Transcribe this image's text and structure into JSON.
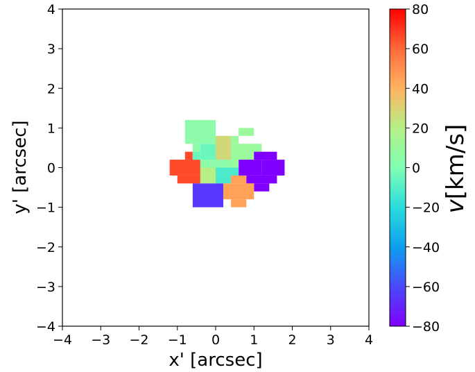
{
  "chart_data": {
    "type": "heatmap",
    "xlabel": "x' [arcsec]",
    "ylabel": "y' [arcsec]",
    "xlim": [
      -4,
      4
    ],
    "ylim": [
      -4,
      4
    ],
    "x_ticks": [
      "−4",
      "−3",
      "−2",
      "−1",
      "0",
      "1",
      "2",
      "3",
      "4"
    ],
    "y_ticks": [
      "−4",
      "−3",
      "−2",
      "−1",
      "0",
      "1",
      "2",
      "3",
      "4"
    ],
    "colorbar": {
      "label": "v[km/s]",
      "label_italic": "v",
      "label_rest": "[km/s]",
      "range": [
        -80,
        80
      ],
      "ticks": [
        "−80",
        "−60",
        "−40",
        "−20",
        "0",
        "20",
        "40",
        "60",
        "80"
      ],
      "colormap": "rainbow"
    },
    "cells": [
      {
        "x0": -0.8,
        "x1": -0.6,
        "y0": 0.2,
        "y1": 0.4,
        "v": 66
      },
      {
        "x0": -1.2,
        "x1": -0.4,
        "y0": -0.2,
        "y1": 0.2,
        "v": 66
      },
      {
        "x0": -1.0,
        "x1": -0.4,
        "y0": -0.4,
        "y1": -0.2,
        "v": 66
      },
      {
        "x0": -0.8,
        "x1": 0.0,
        "y0": 0.6,
        "y1": 1.2,
        "v": 5
      },
      {
        "x0": -0.6,
        "x1": -0.4,
        "y0": 0.4,
        "y1": 0.6,
        "v": 5
      },
      {
        "x0": 0.4,
        "x1": 0.6,
        "y0": 0.6,
        "y1": 0.8,
        "v": 10
      },
      {
        "x0": 0.4,
        "x1": 1.2,
        "y0": 0.2,
        "y1": 0.6,
        "v": 10
      },
      {
        "x0": 0.6,
        "x1": 1.0,
        "y0": 0.8,
        "y1": 1.0,
        "v": 10
      },
      {
        "x0": 0.4,
        "x1": 0.6,
        "y0": 0.0,
        "y1": 0.2,
        "v": 10
      },
      {
        "x0": -0.4,
        "x1": 0.0,
        "y0": 0.2,
        "y1": 0.6,
        "v": -5
      },
      {
        "x0": -0.6,
        "x1": -0.4,
        "y0": 0.2,
        "y1": 0.4,
        "v": -5
      },
      {
        "x0": 0.0,
        "x1": 0.4,
        "y0": 0.2,
        "y1": 0.8,
        "v": 28
      },
      {
        "x0": 0.0,
        "x1": 0.4,
        "y0": 0.0,
        "y1": 0.2,
        "v": 5
      },
      {
        "x0": -0.4,
        "x1": 0.0,
        "y0": 0.0,
        "y1": 0.2,
        "v": 5
      },
      {
        "x0": -0.4,
        "x1": 0.0,
        "y0": -0.4,
        "y1": 0.0,
        "v": 20
      },
      {
        "x0": 0.0,
        "x1": 0.6,
        "y0": -0.2,
        "y1": 0.0,
        "v": -12
      },
      {
        "x0": 0.0,
        "x1": 0.4,
        "y0": -0.4,
        "y1": -0.2,
        "v": -12
      },
      {
        "x0": 0.6,
        "x1": 1.2,
        "y0": -0.2,
        "y1": 0.2,
        "v": -80
      },
      {
        "x0": 1.2,
        "x1": 1.8,
        "y0": -0.2,
        "y1": 0.2,
        "v": -80
      },
      {
        "x0": 1.0,
        "x1": 1.6,
        "y0": 0.2,
        "y1": 0.4,
        "v": -80
      },
      {
        "x0": 0.8,
        "x1": 1.6,
        "y0": -0.4,
        "y1": -0.2,
        "v": -80
      },
      {
        "x0": 1.0,
        "x1": 1.4,
        "y0": -0.6,
        "y1": -0.4,
        "v": -80
      },
      {
        "x0": -0.6,
        "x1": 0.2,
        "y0": -1.0,
        "y1": -0.4,
        "v": -65
      },
      {
        "x0": 0.4,
        "x1": 0.8,
        "y0": -0.4,
        "y1": -0.2,
        "v": 45
      },
      {
        "x0": 0.2,
        "x1": 1.0,
        "y0": -0.8,
        "y1": -0.4,
        "v": 45
      },
      {
        "x0": 0.4,
        "x1": 0.8,
        "y0": -1.0,
        "y1": -0.8,
        "v": 45
      }
    ]
  }
}
